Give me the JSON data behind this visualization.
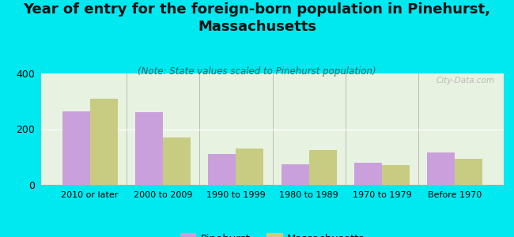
{
  "title": "Year of entry for the foreign-born population in Pinehurst,\nMassachusetts",
  "subtitle": "(Note: State values scaled to Pinehurst population)",
  "categories": [
    "2010 or later",
    "2000 to 2009",
    "1990 to 1999",
    "1980 to 1989",
    "1970 to 1979",
    "Before 1970"
  ],
  "pinehurst": [
    265,
    260,
    110,
    75,
    80,
    115
  ],
  "massachusetts": [
    310,
    170,
    130,
    125,
    70,
    95
  ],
  "pinehurst_color": "#c9a0dc",
  "massachusetts_color": "#c8cc82",
  "background_outer": "#00e8f0",
  "background_plot": "#e8f2e0",
  "ylim": [
    0,
    400
  ],
  "yticks": [
    0,
    200,
    400
  ],
  "watermark": "City-Data.com",
  "legend_pinehurst": "Pinehurst",
  "legend_massachusetts": "Massachusetts",
  "title_fontsize": 13,
  "subtitle_fontsize": 8.5,
  "bar_width": 0.38
}
